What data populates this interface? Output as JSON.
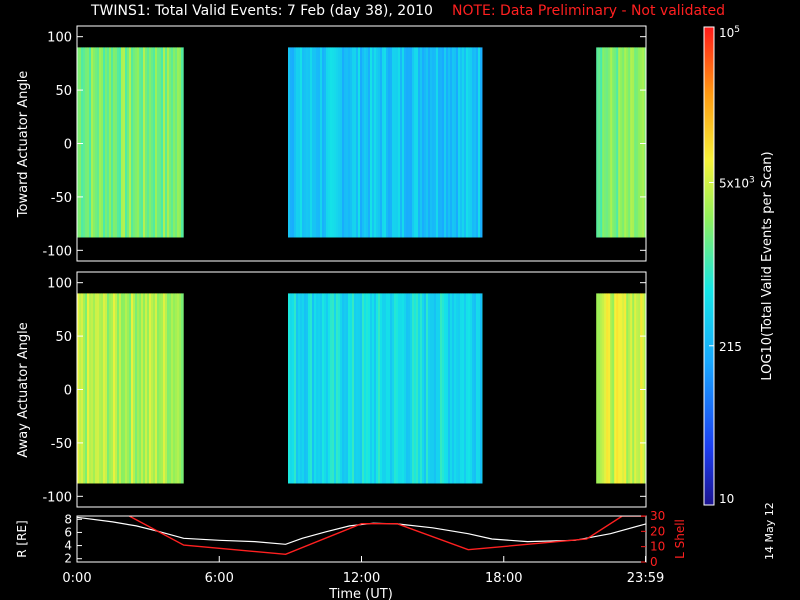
{
  "title": "TWINS1: Total Valid Events:  7 Feb (day  38), 2010",
  "note": "NOTE: Data Preliminary - Not validated",
  "stamp": "14 May 12",
  "colors": {
    "background": "#000000",
    "axis": "#ffffff",
    "note": "#ff2020",
    "lshell": "#ff2020",
    "radius": "#ffffff"
  },
  "chart_data": [
    {
      "type": "heatmap",
      "name": "toward",
      "ylabel": "Toward Actuator Angle",
      "ylim": [
        -110,
        110
      ],
      "yticks": [
        100,
        50,
        0,
        -50,
        -100
      ],
      "xlim": [
        0,
        24
      ],
      "data_y_range": [
        -88,
        90
      ],
      "valid_intervals": [
        {
          "start": 0.0,
          "end": 4.5,
          "log_level": 3.3
        },
        {
          "start": 8.9,
          "end": 17.1,
          "log_level": 2.5
        },
        {
          "start": 21.9,
          "end": 24.0,
          "log_level": 3.3
        }
      ]
    },
    {
      "type": "heatmap",
      "name": "away",
      "ylabel": "Away Actuator Angle",
      "ylim": [
        -110,
        110
      ],
      "yticks": [
        100,
        50,
        0,
        -50,
        -100
      ],
      "xlim": [
        0,
        24
      ],
      "data_y_range": [
        -88,
        90
      ],
      "valid_intervals": [
        {
          "start": 0.0,
          "end": 4.5,
          "log_level": 3.55
        },
        {
          "start": 8.9,
          "end": 17.1,
          "log_level": 2.7
        },
        {
          "start": 21.9,
          "end": 24.0,
          "log_level": 3.7
        }
      ]
    },
    {
      "type": "colorbar",
      "label": "LOG10(Total Valid Events per Scan)",
      "range": [
        10,
        100000
      ],
      "log_range": [
        1,
        5
      ],
      "ticks": [
        "10",
        "215",
        "5x10^3",
        "10^5"
      ],
      "tick_values": [
        10,
        215,
        5000,
        100000
      ]
    },
    {
      "type": "line",
      "name": "orbit",
      "xlabel": "Time (UT)",
      "xticks": [
        "0:00",
        "6:00",
        "12:00",
        "18:00",
        "23:59"
      ],
      "xtick_values": [
        0,
        6,
        12,
        18,
        23.98
      ],
      "xlim": [
        0,
        24
      ],
      "left_axis": {
        "label": "R [RE]",
        "ylim": [
          1.5,
          8.5
        ],
        "ticks": [
          2,
          4,
          6,
          8
        ]
      },
      "right_axis": {
        "label": "L Shell",
        "ylim": [
          0,
          30
        ],
        "ticks": [
          0,
          10,
          20,
          30
        ]
      },
      "series": [
        {
          "name": "R",
          "axis": "left",
          "x": [
            0,
            1.5,
            2.5,
            3.5,
            4.5,
            6.0,
            7.5,
            8.8,
            9.5,
            10.5,
            11.5,
            12.5,
            13.5,
            15.0,
            16.5,
            17.5,
            19.0,
            21.0,
            22.5,
            24.0
          ],
          "y": [
            8.3,
            7.6,
            7.0,
            6.1,
            5.1,
            4.8,
            4.6,
            4.2,
            5.1,
            6.1,
            7.0,
            7.4,
            7.3,
            6.7,
            5.8,
            5.0,
            4.6,
            4.8,
            5.8,
            7.3
          ]
        },
        {
          "name": "L Shell",
          "axis": "right",
          "x": [
            2.2,
            4.5,
            8.8,
            12.0,
            13.5,
            16.5,
            21.5,
            23.0,
            24.0
          ],
          "y": [
            30,
            11,
            5,
            25,
            25,
            8,
            15,
            30,
            30
          ]
        }
      ]
    }
  ]
}
